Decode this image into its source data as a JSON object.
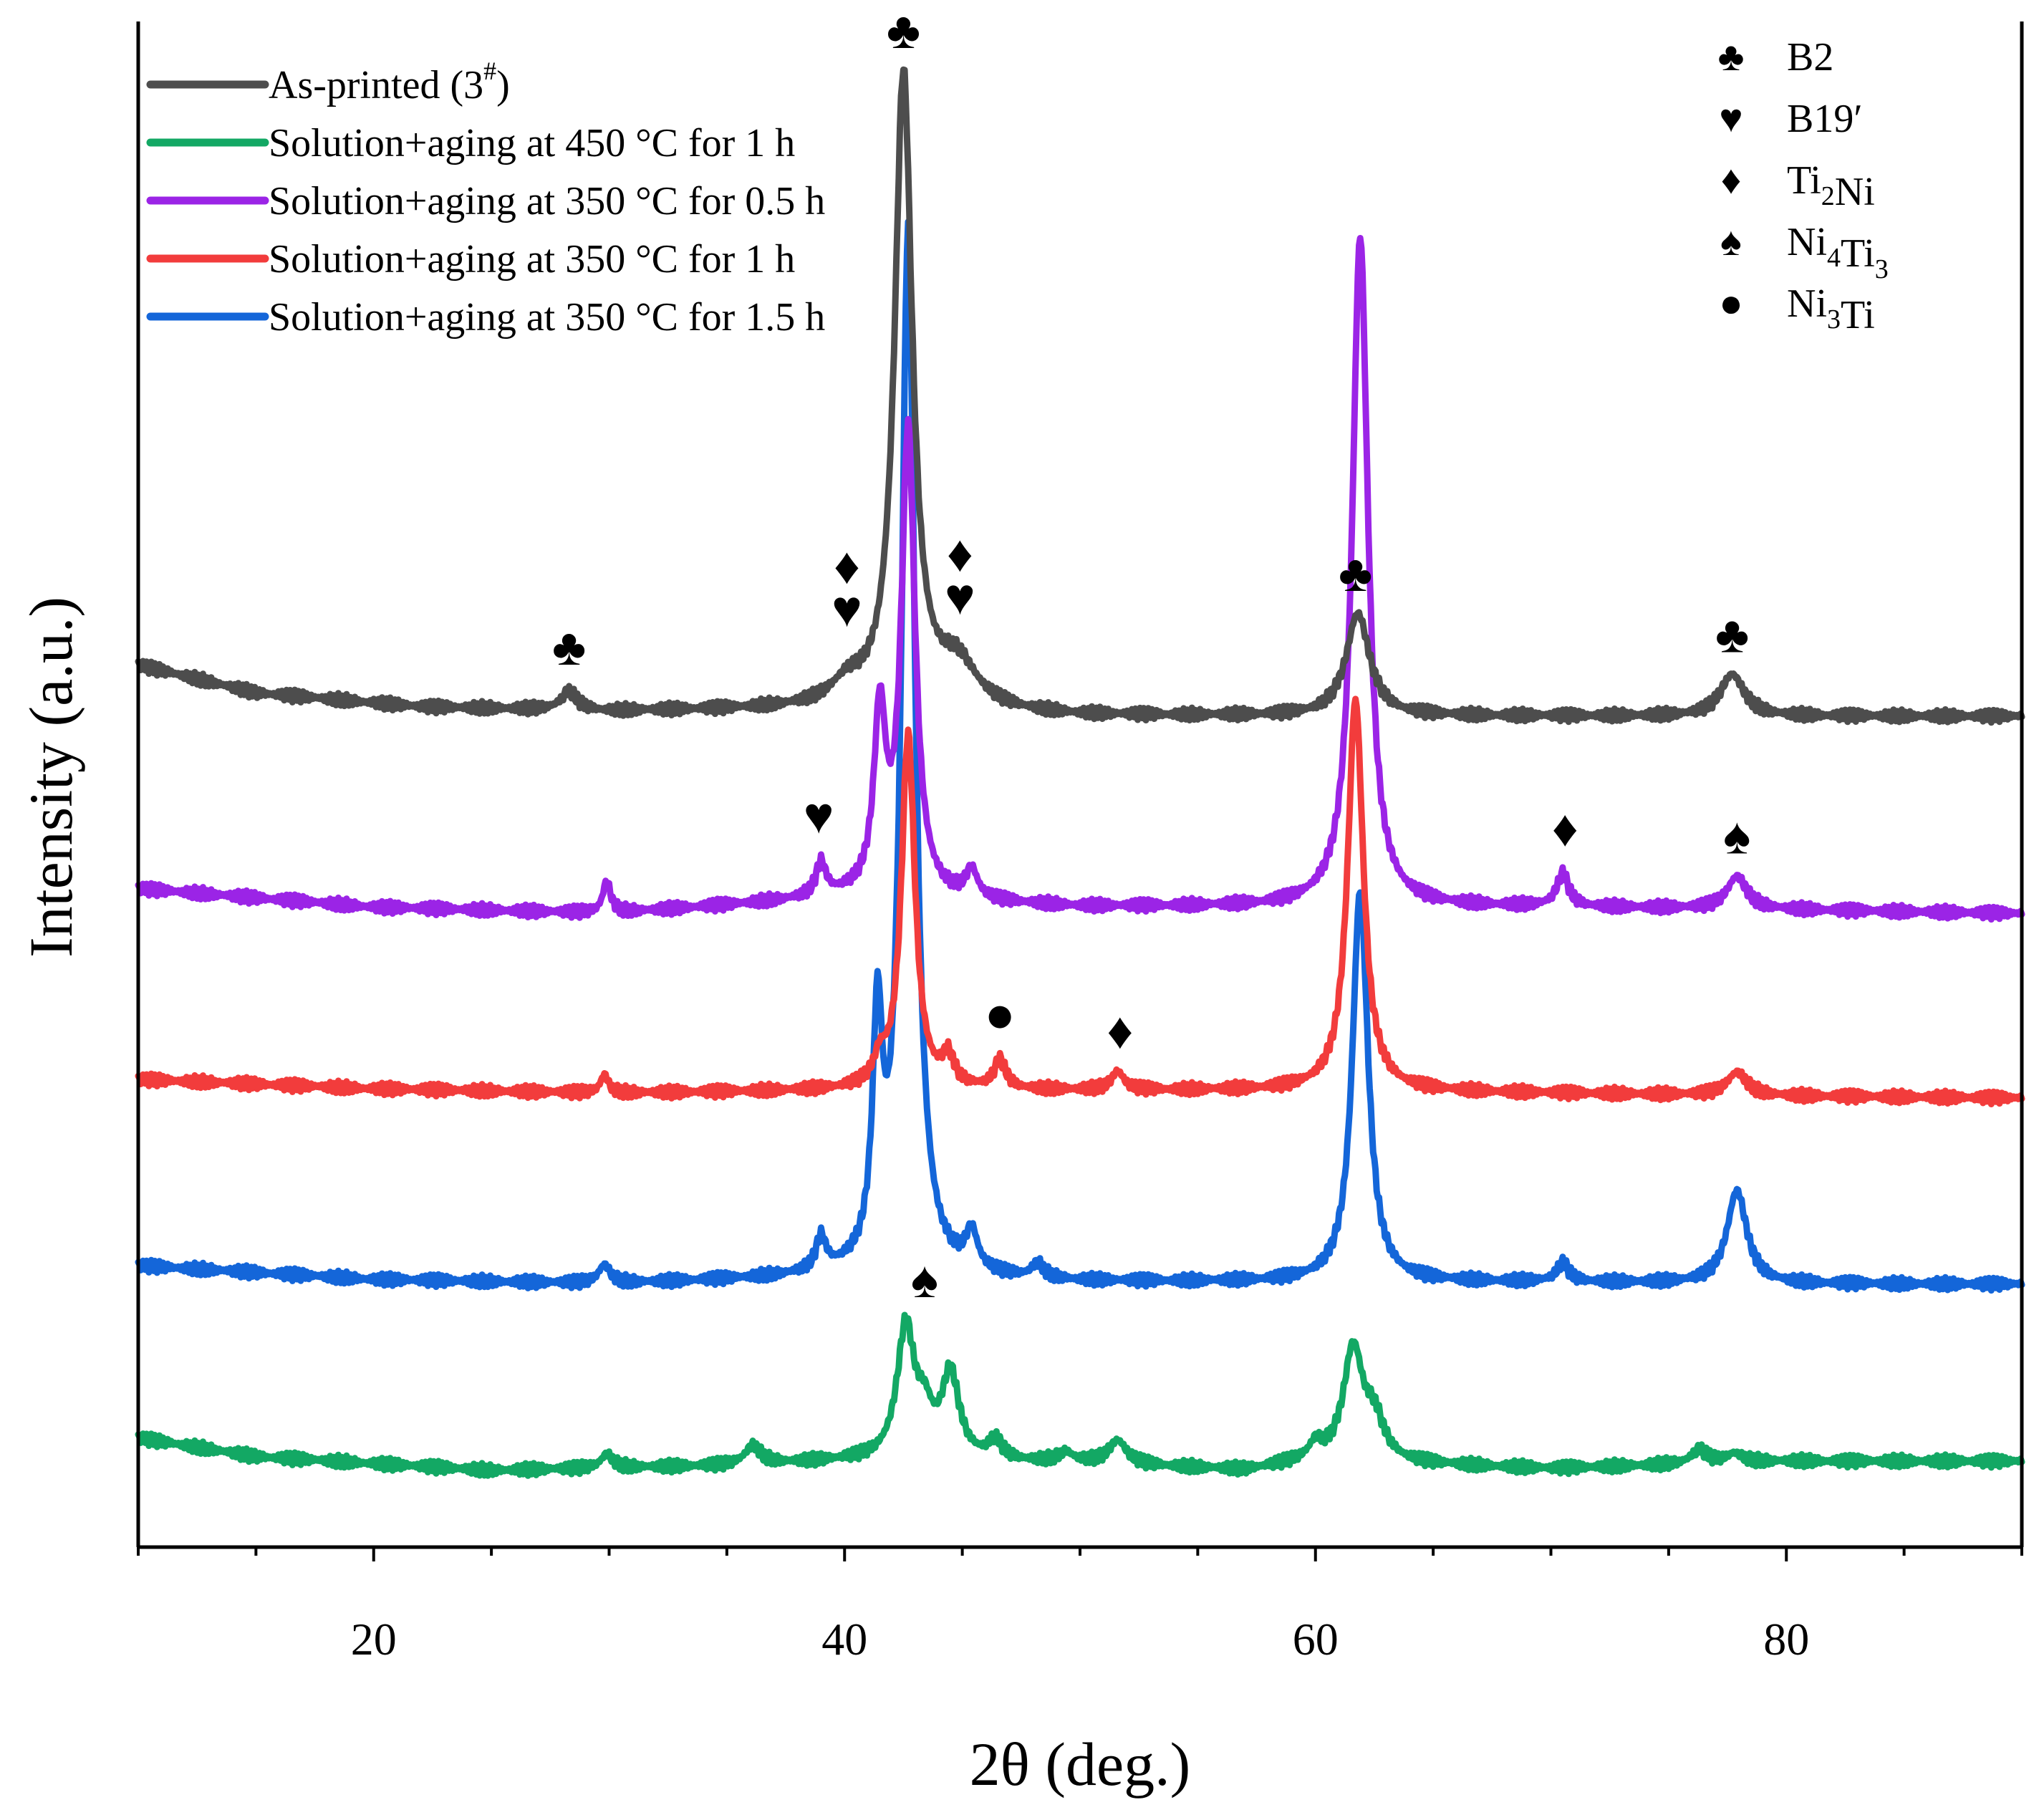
{
  "chart_data": {
    "type": "line",
    "xlabel": "2θ (deg.)",
    "ylabel": "Intensity (a.u.)",
    "xlim": [
      10,
      90
    ],
    "xticks": [
      20,
      40,
      60,
      80
    ],
    "yticks_shown": false,
    "legend_position": "top-left",
    "series": [
      {
        "name": "As-printed (3#)",
        "legend_text": "As-printed (3",
        "legend_sup": "#",
        "legend_tail": ")",
        "color": "#4d4d4d",
        "offset": 0.8,
        "baseline": [
          [
            10,
            0.075
          ],
          [
            15,
            0.045
          ],
          [
            22,
            0.03
          ],
          [
            30,
            0.025
          ],
          [
            40,
            0.028
          ],
          [
            50,
            0.02
          ],
          [
            60,
            0.02
          ],
          [
            70,
            0.02
          ],
          [
            80,
            0.02
          ],
          [
            90,
            0.02
          ]
        ],
        "peaks": [
          [
            28.3,
            0.02,
            0.4
          ],
          [
            40.1,
            0.02,
            0.8
          ],
          [
            42.5,
            0.68,
            0.45
          ],
          [
            44.8,
            0.045,
            1.0
          ],
          [
            61.8,
            0.11,
            0.6
          ],
          [
            77.7,
            0.045,
            0.6
          ]
        ]
      },
      {
        "name": "Solution+aging at 350 °C for 0.5 h",
        "legend_text": "Solution+aging at 350 °C for 0.5 h",
        "color": "#9b24e6",
        "offset": 0.6,
        "baseline": [
          [
            10,
            0.035
          ],
          [
            20,
            0.015
          ],
          [
            30,
            0.008
          ],
          [
            40,
            0.025
          ],
          [
            50,
            0.015
          ],
          [
            58,
            0.015
          ],
          [
            70,
            0.015
          ],
          [
            80,
            0.012
          ],
          [
            90,
            0.008
          ]
        ],
        "peaks": [
          [
            29.9,
            0.035,
            0.2
          ],
          [
            39.0,
            0.035,
            0.25
          ],
          [
            41.5,
            0.19,
            0.3
          ],
          [
            42.7,
            0.5,
            0.35
          ],
          [
            45.4,
            0.03,
            0.3
          ],
          [
            61.9,
            0.72,
            0.4
          ],
          [
            70.5,
            0.035,
            0.3
          ],
          [
            77.9,
            0.035,
            0.5
          ]
        ]
      },
      {
        "name": "Solution+aging at 350 °C for 1 h",
        "legend_text": "Solution+aging at 350 °C for 1 h",
        "color": "#f23c3c",
        "offset": 0.4,
        "baseline": [
          [
            10,
            0.03
          ],
          [
            20,
            0.02
          ],
          [
            30,
            0.015
          ],
          [
            40,
            0.018
          ],
          [
            50,
            0.018
          ],
          [
            60,
            0.018
          ],
          [
            70,
            0.015
          ],
          [
            80,
            0.012
          ],
          [
            90,
            0.01
          ]
        ],
        "peaks": [
          [
            29.8,
            0.02,
            0.2
          ],
          [
            41.5,
            0.025,
            0.3
          ],
          [
            42.7,
            0.38,
            0.35
          ],
          [
            44.4,
            0.03,
            0.3
          ],
          [
            46.6,
            0.03,
            0.3
          ],
          [
            51.6,
            0.02,
            0.3
          ],
          [
            61.7,
            0.42,
            0.4
          ],
          [
            77.9,
            0.025,
            0.5
          ]
        ]
      },
      {
        "name": "Solution+aging at 350 °C for 1.5 h",
        "legend_text": "Solution+aging at 350 °C for 1.5 h",
        "color": "#1466d9",
        "offset": 0.2,
        "baseline": [
          [
            10,
            0.03
          ],
          [
            20,
            0.015
          ],
          [
            30,
            0.01
          ],
          [
            40,
            0.018
          ],
          [
            50,
            0.012
          ],
          [
            60,
            0.012
          ],
          [
            70,
            0.012
          ],
          [
            80,
            0.01
          ],
          [
            90,
            0.01
          ]
        ],
        "peaks": [
          [
            29.8,
            0.02,
            0.3
          ],
          [
            39.0,
            0.035,
            0.25
          ],
          [
            41.4,
            0.25,
            0.25
          ],
          [
            42.7,
            1.12,
            0.35
          ],
          [
            45.4,
            0.04,
            0.3
          ],
          [
            48.2,
            0.015,
            0.3
          ],
          [
            61.9,
            0.42,
            0.4
          ],
          [
            70.5,
            0.02,
            0.3
          ],
          [
            77.9,
            0.1,
            0.5
          ]
        ]
      },
      {
        "name": "Solution+aging at 450 °C for 1 h",
        "legend_text": "Solution+aging at 450 °C for 1 h",
        "color": "#13a864",
        "offset": 0.0,
        "baseline": [
          [
            10,
            0.045
          ],
          [
            15,
            0.025
          ],
          [
            25,
            0.01
          ],
          [
            35,
            0.015
          ],
          [
            40,
            0.02
          ],
          [
            50,
            0.018
          ],
          [
            57,
            0.01
          ],
          [
            60,
            0.02
          ],
          [
            70,
            0.012
          ],
          [
            80,
            0.02
          ],
          [
            90,
            0.02
          ]
        ],
        "peaks": [
          [
            29.9,
            0.015,
            0.3
          ],
          [
            36.1,
            0.02,
            0.4
          ],
          [
            42.6,
            0.14,
            0.45
          ],
          [
            43.4,
            0.04,
            0.4
          ],
          [
            44.5,
            0.09,
            0.45
          ],
          [
            46.4,
            0.02,
            0.35
          ],
          [
            49.4,
            0.01,
            0.35
          ],
          [
            51.6,
            0.025,
            0.45
          ],
          [
            60.0,
            0.015,
            0.3
          ],
          [
            61.6,
            0.12,
            0.5
          ],
          [
            62.5,
            0.04,
            0.5
          ],
          [
            76.3,
            0.015,
            0.4
          ],
          [
            77.8,
            0.01,
            0.4
          ]
        ]
      }
    ],
    "phase_legend": [
      {
        "symbol": "♣",
        "text": "B2",
        "sub_parts": []
      },
      {
        "symbol": "♥",
        "text": "B19′",
        "sub_parts": []
      },
      {
        "symbol": "♦",
        "text": "Ti2Ni",
        "sub_parts": [
          [
            "Ti",
            "2"
          ],
          [
            "Ni",
            ""
          ]
        ]
      },
      {
        "symbol": "♠",
        "text": "Ni4Ti3",
        "sub_parts": [
          [
            "Ni",
            "4"
          ],
          [
            "Ti",
            "3"
          ]
        ]
      },
      {
        "symbol": "●",
        "text": "Ni3Ti",
        "sub_parts": [
          [
            "Ni",
            "3"
          ],
          [
            "Ti",
            ""
          ]
        ]
      }
    ],
    "peak_annotations": [
      {
        "series": 0,
        "x": 28.3,
        "symbol": "♣"
      },
      {
        "series": 0,
        "x": 40.1,
        "symbol": "♦"
      },
      {
        "series": 0,
        "x": 40.1,
        "symbol": "♥"
      },
      {
        "series": 0,
        "x": 42.5,
        "symbol": "♣"
      },
      {
        "series": 0,
        "x": 44.9,
        "symbol": "♦"
      },
      {
        "series": 0,
        "x": 44.9,
        "symbol": "♥"
      },
      {
        "series": 0,
        "x": 61.7,
        "symbol": "♣"
      },
      {
        "series": 0,
        "x": 77.7,
        "symbol": "♣"
      },
      {
        "series": 1,
        "x": 38.9,
        "symbol": "♥"
      },
      {
        "series": 1,
        "x": 70.6,
        "symbol": "♦"
      },
      {
        "series": 1,
        "x": 77.9,
        "symbol": "♠"
      },
      {
        "series": 2,
        "x": 46.6,
        "symbol": "●"
      },
      {
        "series": 2,
        "x": 51.7,
        "symbol": "♦"
      },
      {
        "series": 4,
        "x": 43.4,
        "symbol": "♠"
      }
    ]
  }
}
